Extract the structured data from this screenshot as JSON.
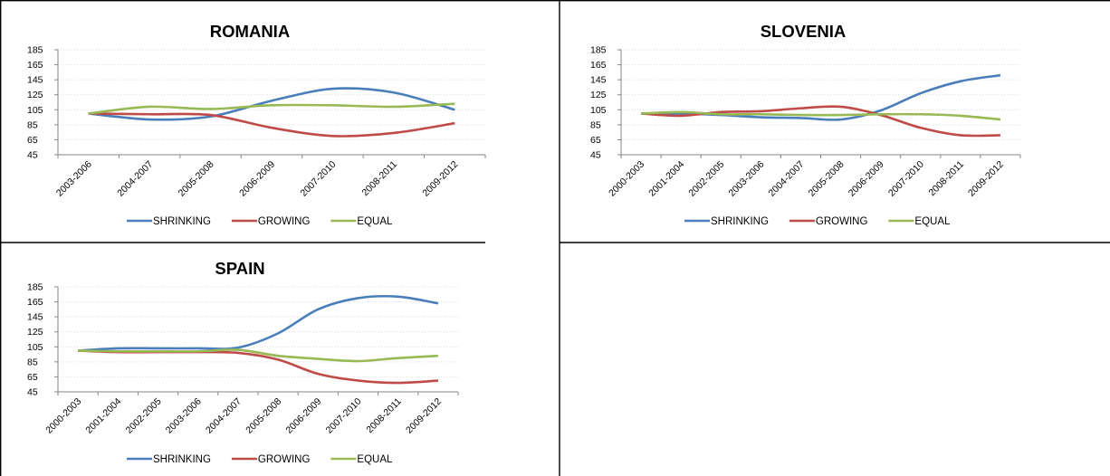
{
  "colors": {
    "shrinking": "#4a7ebb",
    "growing": "#be4b48",
    "equal": "#98b954"
  },
  "chart_data": [
    {
      "type": "line",
      "title": "ROMANIA",
      "categories": [
        "2003-2006",
        "2004-2007",
        "2005-2008",
        "2006-2009",
        "2007-2010",
        "2008-2011",
        "2009-2012"
      ],
      "ylim": [
        45,
        185
      ],
      "yticks": [
        45,
        65,
        85,
        105,
        125,
        145,
        165,
        185
      ],
      "grid": true,
      "legend_position": "bottom",
      "series": [
        {
          "name": "SHRINKING",
          "values": [
            100,
            92,
            96,
            117,
            133,
            128,
            105
          ]
        },
        {
          "name": "GROWING",
          "values": [
            100,
            99,
            98,
            81,
            70,
            74,
            87
          ]
        },
        {
          "name": "EQUAL",
          "values": [
            100,
            109,
            106,
            111,
            111,
            109,
            113
          ]
        }
      ]
    },
    {
      "type": "line",
      "title": "SLOVENIA",
      "categories": [
        "2000-2003",
        "2001-2004",
        "2002-2005",
        "2003-2006",
        "2004-2007",
        "2005-2008",
        "2006-2009",
        "2007-2010",
        "2008-2011",
        "2009-2012"
      ],
      "ylim": [
        45,
        185
      ],
      "yticks": [
        45,
        65,
        85,
        105,
        125,
        145,
        165,
        185
      ],
      "grid": true,
      "legend_position": "bottom",
      "series": [
        {
          "name": "SHRINKING",
          "values": [
            100,
            100,
            98,
            95,
            94,
            92,
            104,
            127,
            143,
            151
          ]
        },
        {
          "name": "GROWING",
          "values": [
            100,
            97,
            102,
            103,
            107,
            109,
            98,
            81,
            71,
            71
          ]
        },
        {
          "name": "EQUAL",
          "values": [
            100,
            102,
            99,
            99,
            98,
            98,
            99,
            99,
            97,
            92
          ]
        }
      ]
    },
    {
      "type": "line",
      "title": "SPAIN",
      "categories": [
        "2000-2003",
        "2001-2004",
        "2002-2005",
        "2003-2006",
        "2004-2007",
        "2005-2008",
        "2006-2009",
        "2007-2010",
        "2008-2011",
        "2009-2012"
      ],
      "ylim": [
        45,
        185
      ],
      "yticks": [
        45,
        65,
        85,
        105,
        125,
        145,
        165,
        185
      ],
      "grid": true,
      "legend_position": "bottom",
      "series": [
        {
          "name": "SHRINKING",
          "values": [
            100,
            103,
            103,
            103,
            104,
            123,
            155,
            170,
            172,
            163
          ]
        },
        {
          "name": "GROWING",
          "values": [
            100,
            98,
            98,
            98,
            97,
            88,
            69,
            60,
            57,
            60
          ]
        },
        {
          "name": "EQUAL",
          "values": [
            100,
            99,
            99,
            99,
            101,
            93,
            89,
            86,
            90,
            93
          ]
        }
      ]
    }
  ]
}
